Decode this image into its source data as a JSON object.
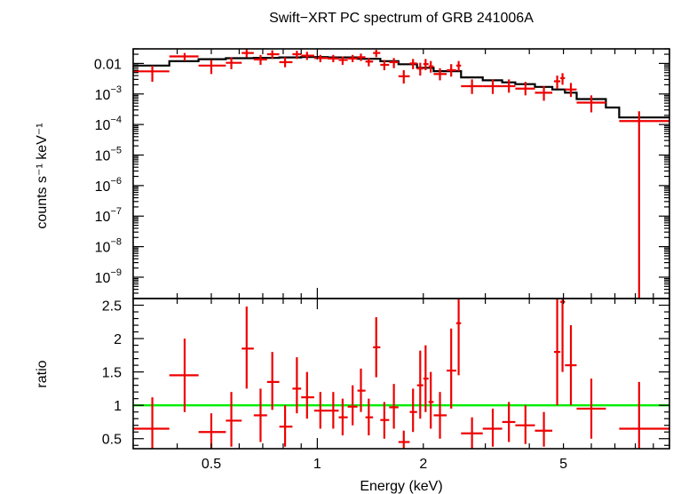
{
  "title": "Swift−XRT PC spectrum of GRB 241006A",
  "chart_data": [
    {
      "type": "scatter",
      "panel": "spectrum",
      "ylabel": "counts s⁻¹ keV⁻¹",
      "xlabel": "",
      "xscale": "log",
      "yscale": "log",
      "xlim": [
        0.3,
        10
      ],
      "ylim": [
        2e-10,
        0.03
      ],
      "y_ticks": [
        {
          "v": 0.01,
          "t": "0.01"
        },
        {
          "v": 0.001,
          "b": "10",
          "e": "−3"
        },
        {
          "v": 0.0001,
          "b": "10",
          "e": "−4"
        },
        {
          "v": 1e-05,
          "b": "10",
          "e": "−5"
        },
        {
          "v": 1e-06,
          "b": "10",
          "e": "−6"
        },
        {
          "v": 1e-07,
          "b": "10",
          "e": "−7"
        },
        {
          "v": 1e-08,
          "b": "10",
          "e": "−8"
        },
        {
          "v": 1e-09,
          "b": "10",
          "e": "−9"
        }
      ],
      "series": [
        {
          "color": "#ee0000",
          "points": [
            {
              "x": 0.34,
              "xl": 0.3,
              "xh": 0.38,
              "y": 0.0055,
              "yl": 0.0025,
              "yh": 0.0085
            },
            {
              "x": 0.42,
              "xl": 0.38,
              "xh": 0.46,
              "y": 0.017,
              "yl": 0.012,
              "yh": 0.022
            },
            {
              "x": 0.5,
              "xl": 0.46,
              "xh": 0.55,
              "y": 0.0085,
              "yl": 0.0045,
              "yh": 0.013
            },
            {
              "x": 0.57,
              "xl": 0.55,
              "xh": 0.61,
              "y": 0.0105,
              "yl": 0.0065,
              "yh": 0.016
            },
            {
              "x": 0.63,
              "xl": 0.61,
              "xh": 0.66,
              "y": 0.022,
              "yl": 0.016,
              "yh": 0.032
            },
            {
              "x": 0.69,
              "xl": 0.66,
              "xh": 0.72,
              "y": 0.0135,
              "yl": 0.009,
              "yh": 0.019
            },
            {
              "x": 0.745,
              "xl": 0.72,
              "xh": 0.78,
              "y": 0.02,
              "yl": 0.014,
              "yh": 0.027
            },
            {
              "x": 0.81,
              "xl": 0.78,
              "xh": 0.85,
              "y": 0.011,
              "yl": 0.0075,
              "yh": 0.016
            },
            {
              "x": 0.875,
              "xl": 0.85,
              "xh": 0.9,
              "y": 0.02,
              "yl": 0.014,
              "yh": 0.026
            },
            {
              "x": 0.935,
              "xl": 0.9,
              "xh": 0.98,
              "y": 0.018,
              "yl": 0.013,
              "yh": 0.024
            },
            {
              "x": 1.02,
              "xl": 0.98,
              "xh": 1.07,
              "y": 0.015,
              "yl": 0.011,
              "yh": 0.019
            },
            {
              "x": 1.11,
              "xl": 1.07,
              "xh": 1.15,
              "y": 0.0145,
              "yl": 0.011,
              "yh": 0.019
            },
            {
              "x": 1.18,
              "xl": 1.15,
              "xh": 1.22,
              "y": 0.013,
              "yl": 0.009,
              "yh": 0.017
            },
            {
              "x": 1.26,
              "xl": 1.22,
              "xh": 1.3,
              "y": 0.0145,
              "yl": 0.011,
              "yh": 0.019
            },
            {
              "x": 1.33,
              "xl": 1.3,
              "xh": 1.37,
              "y": 0.016,
              "yl": 0.012,
              "yh": 0.021
            },
            {
              "x": 1.4,
              "xl": 1.37,
              "xh": 1.44,
              "y": 0.0115,
              "yl": 0.008,
              "yh": 0.015
            },
            {
              "x": 1.47,
              "xl": 1.44,
              "xh": 1.51,
              "y": 0.022,
              "yl": 0.016,
              "yh": 0.028
            },
            {
              "x": 1.55,
              "xl": 1.51,
              "xh": 1.6,
              "y": 0.009,
              "yl": 0.006,
              "yh": 0.013
            },
            {
              "x": 1.65,
              "xl": 1.6,
              "xh": 1.7,
              "y": 0.011,
              "yl": 0.007,
              "yh": 0.015
            },
            {
              "x": 1.76,
              "xl": 1.7,
              "xh": 1.83,
              "y": 0.0038,
              "yl": 0.0022,
              "yh": 0.006
            },
            {
              "x": 1.87,
              "xl": 1.83,
              "xh": 1.92,
              "y": 0.01,
              "yl": 0.0065,
              "yh": 0.014
            },
            {
              "x": 1.96,
              "xl": 1.92,
              "xh": 2.0,
              "y": 0.0068,
              "yl": 0.004,
              "yh": 0.0105
            },
            {
              "x": 2.03,
              "xl": 2.0,
              "xh": 2.07,
              "y": 0.0095,
              "yl": 0.006,
              "yh": 0.014
            },
            {
              "x": 2.1,
              "xl": 2.07,
              "xh": 2.14,
              "y": 0.008,
              "yl": 0.005,
              "yh": 0.012
            },
            {
              "x": 2.23,
              "xl": 2.14,
              "xh": 2.33,
              "y": 0.0045,
              "yl": 0.0028,
              "yh": 0.007
            },
            {
              "x": 2.4,
              "xl": 2.33,
              "xh": 2.48,
              "y": 0.006,
              "yl": 0.0037,
              "yh": 0.0095
            },
            {
              "x": 2.52,
              "xl": 2.48,
              "xh": 2.56,
              "y": 0.0085,
              "yl": 0.0055,
              "yh": 0.012
            },
            {
              "x": 2.75,
              "xl": 2.56,
              "xh": 2.95,
              "y": 0.0018,
              "yl": 0.001,
              "yh": 0.003
            },
            {
              "x": 3.15,
              "xl": 2.95,
              "xh": 3.35,
              "y": 0.0018,
              "yl": 0.001,
              "yh": 0.003
            },
            {
              "x": 3.5,
              "xl": 3.35,
              "xh": 3.65,
              "y": 0.0018,
              "yl": 0.0011,
              "yh": 0.003
            },
            {
              "x": 3.9,
              "xl": 3.65,
              "xh": 4.15,
              "y": 0.0015,
              "yl": 0.0009,
              "yh": 0.0025
            },
            {
              "x": 4.4,
              "xl": 4.15,
              "xh": 4.65,
              "y": 0.0011,
              "yl": 0.0006,
              "yh": 0.0018
            },
            {
              "x": 4.8,
              "xl": 4.7,
              "xh": 4.9,
              "y": 0.0026,
              "yl": 0.0015,
              "yh": 0.004
            },
            {
              "x": 4.97,
              "xl": 4.9,
              "xh": 5.05,
              "y": 0.0033,
              "yl": 0.002,
              "yh": 0.0048
            },
            {
              "x": 5.25,
              "xl": 5.05,
              "xh": 5.45,
              "y": 0.0014,
              "yl": 0.0008,
              "yh": 0.0023
            },
            {
              "x": 6.0,
              "xl": 5.45,
              "xh": 6.6,
              "y": 0.00052,
              "yl": 0.00025,
              "yh": 0.0009
            },
            {
              "x": 8.2,
              "xl": 7.2,
              "xh": 10.0,
              "y": 0.00013,
              "yl": 2e-10,
              "yh": 0.00027
            }
          ]
        },
        {
          "color": "#000000",
          "model_steps": [
            {
              "x0": 0.3,
              "x1": 0.38,
              "y": 0.0085
            },
            {
              "x0": 0.38,
              "x1": 0.46,
              "y": 0.0118
            },
            {
              "x0": 0.46,
              "x1": 0.55,
              "y": 0.0138
            },
            {
              "x0": 0.55,
              "x1": 0.66,
              "y": 0.0148
            },
            {
              "x0": 0.66,
              "x1": 0.78,
              "y": 0.0152
            },
            {
              "x0": 0.78,
              "x1": 0.9,
              "y": 0.0158
            },
            {
              "x0": 0.9,
              "x1": 1.07,
              "y": 0.0162
            },
            {
              "x0": 1.07,
              "x1": 1.3,
              "y": 0.0158
            },
            {
              "x0": 1.3,
              "x1": 1.51,
              "y": 0.0142
            },
            {
              "x0": 1.51,
              "x1": 1.7,
              "y": 0.0118
            },
            {
              "x0": 1.7,
              "x1": 1.92,
              "y": 0.0094
            },
            {
              "x0": 1.92,
              "x1": 2.14,
              "y": 0.0072
            },
            {
              "x0": 2.14,
              "x1": 2.56,
              "y": 0.0056
            },
            {
              "x0": 2.56,
              "x1": 2.95,
              "y": 0.0035
            },
            {
              "x0": 2.95,
              "x1": 3.35,
              "y": 0.0028
            },
            {
              "x0": 3.35,
              "x1": 3.65,
              "y": 0.0024
            },
            {
              "x0": 3.65,
              "x1": 4.15,
              "y": 0.0021
            },
            {
              "x0": 4.15,
              "x1": 4.65,
              "y": 0.0017
            },
            {
              "x0": 4.65,
              "x1": 5.05,
              "y": 0.0014
            },
            {
              "x0": 5.05,
              "x1": 5.45,
              "y": 0.0011
            },
            {
              "x0": 5.45,
              "x1": 6.6,
              "y": 0.00068
            },
            {
              "x0": 6.6,
              "x1": 7.2,
              "y": 0.00036
            },
            {
              "x0": 7.2,
              "x1": 10.0,
              "y": 0.00017
            }
          ]
        }
      ]
    },
    {
      "type": "scatter",
      "panel": "ratio",
      "xlabel": "Energy (keV)",
      "ylabel": "ratio",
      "xscale": "log",
      "xlim": [
        0.3,
        10
      ],
      "ylim": [
        0.35,
        2.6
      ],
      "x_ticks": [
        {
          "v": 0.5,
          "t": "0.5"
        },
        {
          "v": 1,
          "t": "1"
        },
        {
          "v": 2,
          "t": "2"
        },
        {
          "v": 5,
          "t": "5"
        }
      ],
      "y_ticks": [
        {
          "v": 0.5,
          "t": "0.5"
        },
        {
          "v": 1,
          "t": "1"
        },
        {
          "v": 1.5,
          "t": "1.5"
        },
        {
          "v": 2,
          "t": "2"
        },
        {
          "v": 2.5,
          "t": "2.5"
        }
      ],
      "reference_line": {
        "y": 1,
        "color": "#00ee00"
      },
      "series": [
        {
          "color": "#ee0000",
          "points": [
            {
              "x": 0.34,
              "xl": 0.3,
              "xh": 0.38,
              "y": 0.65,
              "yl": 0.35,
              "yh": 1.12
            },
            {
              "x": 0.42,
              "xl": 0.38,
              "xh": 0.46,
              "y": 1.45,
              "yl": 0.9,
              "yh": 2.0
            },
            {
              "x": 0.5,
              "xl": 0.46,
              "xh": 0.55,
              "y": 0.6,
              "yl": 0.35,
              "yh": 0.88
            },
            {
              "x": 0.57,
              "xl": 0.55,
              "xh": 0.61,
              "y": 0.77,
              "yl": 0.38,
              "yh": 1.2
            },
            {
              "x": 0.63,
              "xl": 0.61,
              "xh": 0.66,
              "y": 1.85,
              "yl": 1.25,
              "yh": 2.48
            },
            {
              "x": 0.69,
              "xl": 0.66,
              "xh": 0.72,
              "y": 0.85,
              "yl": 0.45,
              "yh": 1.25
            },
            {
              "x": 0.745,
              "xl": 0.72,
              "xh": 0.78,
              "y": 1.35,
              "yl": 0.93,
              "yh": 1.8
            },
            {
              "x": 0.81,
              "xl": 0.78,
              "xh": 0.85,
              "y": 0.68,
              "yl": 0.38,
              "yh": 1.0
            },
            {
              "x": 0.875,
              "xl": 0.85,
              "xh": 0.9,
              "y": 1.25,
              "yl": 0.88,
              "yh": 1.72
            },
            {
              "x": 0.935,
              "xl": 0.9,
              "xh": 0.98,
              "y": 1.12,
              "yl": 0.8,
              "yh": 1.5
            },
            {
              "x": 1.02,
              "xl": 0.98,
              "xh": 1.07,
              "y": 0.92,
              "yl": 0.65,
              "yh": 1.2
            },
            {
              "x": 1.11,
              "xl": 1.07,
              "xh": 1.15,
              "y": 0.92,
              "yl": 0.65,
              "yh": 1.2
            },
            {
              "x": 1.18,
              "xl": 1.15,
              "xh": 1.22,
              "y": 0.82,
              "yl": 0.55,
              "yh": 1.1
            },
            {
              "x": 1.26,
              "xl": 1.22,
              "xh": 1.3,
              "y": 0.98,
              "yl": 0.7,
              "yh": 1.3
            },
            {
              "x": 1.33,
              "xl": 1.3,
              "xh": 1.37,
              "y": 1.22,
              "yl": 0.9,
              "yh": 1.55
            },
            {
              "x": 1.4,
              "xl": 1.37,
              "xh": 1.44,
              "y": 0.82,
              "yl": 0.55,
              "yh": 1.1
            },
            {
              "x": 1.47,
              "xl": 1.44,
              "xh": 1.51,
              "y": 1.87,
              "yl": 1.42,
              "yh": 2.32
            },
            {
              "x": 1.55,
              "xl": 1.51,
              "xh": 1.6,
              "y": 0.78,
              "yl": 0.5,
              "yh": 1.05
            },
            {
              "x": 1.65,
              "xl": 1.6,
              "xh": 1.7,
              "y": 0.97,
              "yl": 0.65,
              "yh": 1.32
            },
            {
              "x": 1.76,
              "xl": 1.7,
              "xh": 1.83,
              "y": 0.45,
              "yl": 0.35,
              "yh": 0.62
            },
            {
              "x": 1.87,
              "xl": 1.83,
              "xh": 1.92,
              "y": 0.9,
              "yl": 0.6,
              "yh": 1.25
            },
            {
              "x": 1.96,
              "xl": 1.92,
              "xh": 2.0,
              "y": 1.3,
              "yl": 0.8,
              "yh": 1.82
            },
            {
              "x": 2.03,
              "xl": 2.0,
              "xh": 2.07,
              "y": 1.4,
              "yl": 0.9,
              "yh": 1.9
            },
            {
              "x": 2.1,
              "xl": 2.07,
              "xh": 2.14,
              "y": 1.05,
              "yl": 0.65,
              "yh": 1.5
            },
            {
              "x": 2.23,
              "xl": 2.14,
              "xh": 2.33,
              "y": 0.85,
              "yl": 0.5,
              "yh": 1.2
            },
            {
              "x": 2.4,
              "xl": 2.33,
              "xh": 2.48,
              "y": 1.52,
              "yl": 0.95,
              "yh": 2.15
            },
            {
              "x": 2.52,
              "xl": 2.48,
              "xh": 2.56,
              "y": 2.23,
              "yl": 1.45,
              "yh": 2.6
            },
            {
              "x": 2.75,
              "xl": 2.56,
              "xh": 2.95,
              "y": 0.58,
              "yl": 0.35,
              "yh": 0.82
            },
            {
              "x": 3.15,
              "xl": 2.95,
              "xh": 3.35,
              "y": 0.65,
              "yl": 0.38,
              "yh": 0.95
            },
            {
              "x": 3.5,
              "xl": 3.35,
              "xh": 3.65,
              "y": 0.75,
              "yl": 0.45,
              "yh": 1.05
            },
            {
              "x": 3.9,
              "xl": 3.65,
              "xh": 4.15,
              "y": 0.7,
              "yl": 0.42,
              "yh": 1.0
            },
            {
              "x": 4.4,
              "xl": 4.15,
              "xh": 4.65,
              "y": 0.62,
              "yl": 0.38,
              "yh": 0.9
            },
            {
              "x": 4.8,
              "xl": 4.7,
              "xh": 4.9,
              "y": 1.8,
              "yl": 1.0,
              "yh": 2.6
            },
            {
              "x": 4.97,
              "xl": 4.9,
              "xh": 5.05,
              "y": 2.55,
              "yl": 1.5,
              "yh": 2.6
            },
            {
              "x": 5.25,
              "xl": 5.05,
              "xh": 5.45,
              "y": 1.6,
              "yl": 1.0,
              "yh": 2.2
            },
            {
              "x": 6.0,
              "xl": 5.45,
              "xh": 6.6,
              "y": 0.95,
              "yl": 0.5,
              "yh": 1.4
            },
            {
              "x": 8.2,
              "xl": 7.2,
              "xh": 10.0,
              "y": 0.65,
              "yl": 0.35,
              "yh": 1.35
            }
          ]
        }
      ]
    }
  ]
}
